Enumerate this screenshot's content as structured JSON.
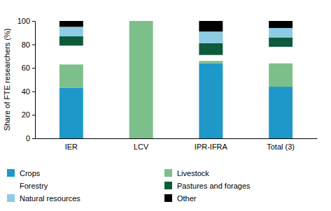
{
  "chart_data": {
    "type": "bar",
    "stacked": true,
    "y_label": "Share of FTE researchers (%)",
    "categories": [
      "IER",
      "LCV",
      "IPR-IFRA",
      "Total (3)"
    ],
    "series": [
      {
        "name": "Crops",
        "color": "#1e98c8",
        "values": [
          43,
          0,
          64,
          44
        ]
      },
      {
        "name": "Livestock",
        "color": "#7cbf8a",
        "values": [
          20,
          100,
          2,
          20
        ]
      },
      {
        "name": "Forestry",
        "color": "#ffffff",
        "values": [
          16,
          0,
          5,
          14
        ]
      },
      {
        "name": "Pastures and forages",
        "color": "#0d5b3b",
        "values": [
          8,
          0,
          10,
          8
        ]
      },
      {
        "name": "Natural resources",
        "color": "#8ecbe4",
        "values": [
          8,
          0,
          10,
          8
        ]
      },
      {
        "name": "Other",
        "color": "#000000",
        "values": [
          5,
          0,
          9,
          6
        ]
      }
    ],
    "ylim": [
      0,
      100
    ],
    "yticks": [
      0,
      20,
      40,
      60,
      80,
      100
    ],
    "grid": false,
    "legend": "bottom"
  }
}
